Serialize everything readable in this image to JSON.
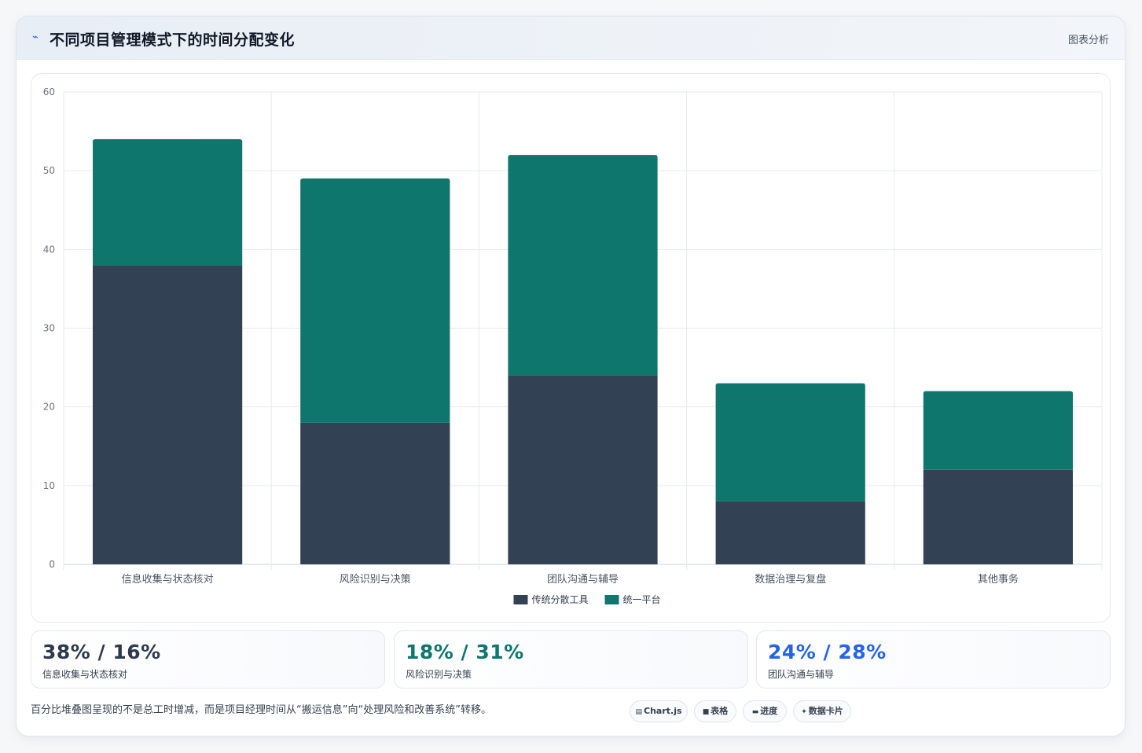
{
  "header": {
    "title": "不同项目管理模式下的时间分配变化",
    "right_label": "图表分析",
    "icon": "pulse-icon"
  },
  "colors": {
    "traditional": "#334155",
    "unified": "#0f766e",
    "accent_blue": "#2563eb"
  },
  "chart_data": {
    "type": "bar",
    "stacked": true,
    "categories": [
      "信息收集与状态核对",
      "风险识别与决策",
      "团队沟通与辅导",
      "数据治理与复盘",
      "其他事务"
    ],
    "series": [
      {
        "name": "传统分散工具",
        "values": [
          38,
          18,
          24,
          8,
          12
        ],
        "color": "#334155"
      },
      {
        "name": "统一平台",
        "values": [
          16,
          31,
          28,
          15,
          10
        ],
        "color": "#0f766e"
      }
    ],
    "ylim": [
      0,
      60
    ],
    "yticks": [
      0,
      10,
      20,
      30,
      40,
      50,
      60
    ],
    "grid": true,
    "legend_position": "bottom"
  },
  "stats": [
    {
      "value": "38% / 16%",
      "label": "信息收集与状态核对",
      "color": "#2d3a4d"
    },
    {
      "value": "18% / 31%",
      "label": "风险识别与决策",
      "color": "#0f766e"
    },
    {
      "value": "24% / 28%",
      "label": "团队沟通与辅导",
      "color": "#2563eb"
    }
  ],
  "note": "百分比堆叠图呈现的不是总工时增减，而是项目经理时间从“搬运信息”向“处理风险和改善系统”转移。",
  "pills": [
    {
      "icon": "chart-icon",
      "glyph": "▤",
      "label": "Chart.js"
    },
    {
      "icon": "table-icon",
      "glyph": "■",
      "label": "表格"
    },
    {
      "icon": "progress-icon",
      "glyph": "▬",
      "label": "进度"
    },
    {
      "icon": "sparkle-icon",
      "glyph": "✦",
      "label": "数据卡片"
    }
  ]
}
